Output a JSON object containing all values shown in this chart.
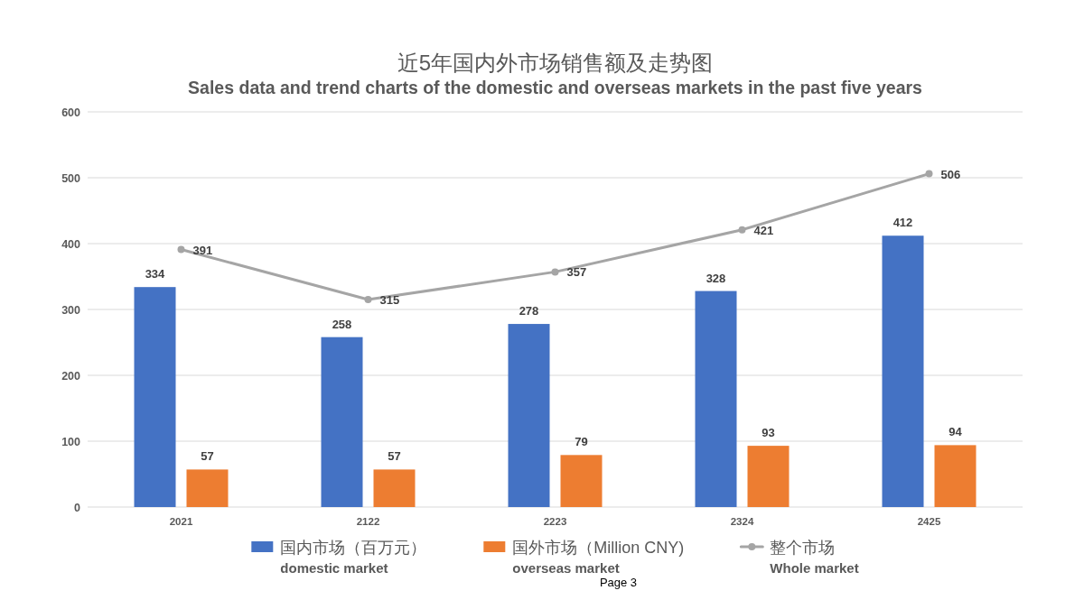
{
  "chart_data": {
    "type": "bar",
    "title": "近5年国内外市场销售额及走势图",
    "subtitle": "Sales data and trend charts of the domestic and overseas markets in the past five years",
    "categories": [
      "2021",
      "2122",
      "2223",
      "2324",
      "2425"
    ],
    "series": [
      {
        "name": "国内市场（百万元）\ndomestic market",
        "color": "#4472c4",
        "values": [
          334,
          258,
          278,
          328,
          412
        ]
      },
      {
        "name": "国外市场（Million CNY)\noverseas market",
        "color": "#ed7d31",
        "values": [
          57,
          57,
          79,
          93,
          94
        ]
      },
      {
        "name": "整个市场\nWhole market",
        "type": "line",
        "color": "#a5a5a5",
        "values": [
          391,
          315,
          357,
          421,
          506
        ]
      }
    ],
    "ylim": [
      0,
      600
    ],
    "yticks": [
      0,
      100,
      200,
      300,
      400,
      500,
      600
    ],
    "grid": "y",
    "legend": "bottom",
    "marker": "circle",
    "data_labels": true,
    "annotations": [
      "Page 3"
    ]
  }
}
